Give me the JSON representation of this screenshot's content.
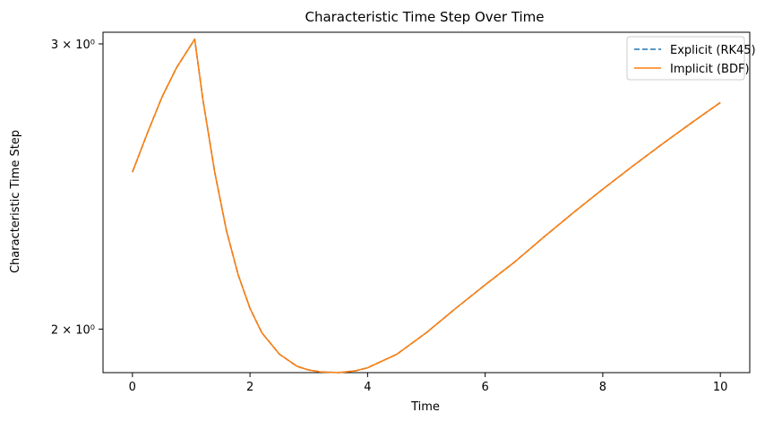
{
  "chart_data": {
    "type": "line",
    "title": "Characteristic Time Step Over Time",
    "xlabel": "Time",
    "ylabel": "Characteristic Time Step",
    "xlim": [
      -0.5,
      10.5
    ],
    "ylim": [
      1.88,
      3.05
    ],
    "yscale": "log",
    "grid": false,
    "legend_position": "top-right",
    "x_ticks": [
      0,
      2,
      4,
      6,
      8,
      10
    ],
    "x_tick_labels": [
      "0",
      "2",
      "4",
      "6",
      "8",
      "10"
    ],
    "y_ticks": [
      2,
      3
    ],
    "y_tick_labels": [
      "2 × 10⁰",
      "3 × 10⁰"
    ],
    "series": [
      {
        "name": "Explicit (RK45)",
        "color": "#1f77b4",
        "style": "dashed",
        "x": [
          0,
          0.25,
          0.5,
          0.75,
          1.06,
          1.2,
          1.4,
          1.6,
          1.8,
          2.0,
          2.2,
          2.5,
          2.8,
          3.0,
          3.2,
          3.5,
          3.8,
          4.0,
          4.5,
          5.0,
          5.5,
          6.0,
          6.5,
          7.0,
          7.5,
          8.0,
          8.5,
          9.0,
          9.5,
          10.0
        ],
        "y": [
          2.5,
          2.64,
          2.78,
          2.9,
          3.02,
          2.77,
          2.5,
          2.3,
          2.16,
          2.06,
          1.99,
          1.93,
          1.897,
          1.887,
          1.882,
          1.88,
          1.885,
          1.893,
          1.93,
          1.99,
          2.06,
          2.13,
          2.2,
          2.28,
          2.36,
          2.44,
          2.52,
          2.6,
          2.68,
          2.76
        ]
      },
      {
        "name": "Implicit (BDF)",
        "color": "#ff7f0e",
        "style": "solid",
        "x": [
          0,
          0.25,
          0.5,
          0.75,
          1.06,
          1.2,
          1.4,
          1.6,
          1.8,
          2.0,
          2.2,
          2.5,
          2.8,
          3.0,
          3.2,
          3.5,
          3.8,
          4.0,
          4.5,
          5.0,
          5.5,
          6.0,
          6.5,
          7.0,
          7.5,
          8.0,
          8.5,
          9.0,
          9.5,
          10.0
        ],
        "y": [
          2.5,
          2.64,
          2.78,
          2.9,
          3.02,
          2.77,
          2.5,
          2.3,
          2.16,
          2.06,
          1.99,
          1.93,
          1.897,
          1.887,
          1.882,
          1.88,
          1.885,
          1.893,
          1.93,
          1.99,
          2.06,
          2.13,
          2.2,
          2.28,
          2.36,
          2.44,
          2.52,
          2.6,
          2.68,
          2.76
        ]
      }
    ]
  }
}
